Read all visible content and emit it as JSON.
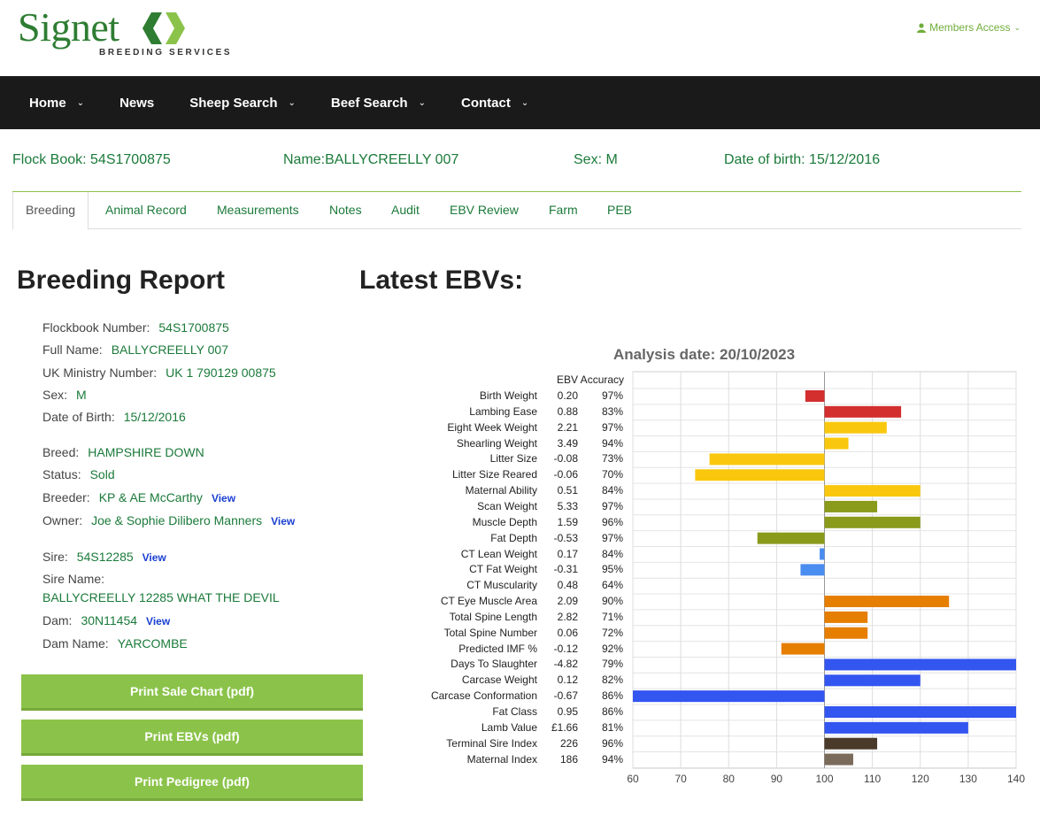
{
  "header": {
    "logo_word": "Signet",
    "logo_sub": "BREEDING SERVICES",
    "members_access": "Members Access",
    "brand_color": "#2e7d32"
  },
  "nav": {
    "items": [
      {
        "label": "Home",
        "has_menu": true
      },
      {
        "label": "News",
        "has_menu": false
      },
      {
        "label": "Sheep Search",
        "has_menu": true
      },
      {
        "label": "Beef Search",
        "has_menu": true
      },
      {
        "label": "Contact",
        "has_menu": true
      }
    ]
  },
  "info": {
    "flock_book": "Flock Book: 54S1700875",
    "name": "Name:BALLYCREELLY 007",
    "sex": "Sex: M",
    "dob": "Date of birth: 15/12/2016"
  },
  "tabs": [
    "Breeding",
    "Animal Record",
    "Measurements",
    "Notes",
    "Audit",
    "EBV Review",
    "Farm",
    "PEB"
  ],
  "report": {
    "title": "Breeding Report",
    "flockbook_label": "Flockbook Number:",
    "flockbook_value": "54S1700875",
    "fullname_label": "Full Name:",
    "fullname_value": "BALLYCREELLY 007",
    "ministry_label": "UK Ministry Number:",
    "ministry_value": "UK 1 790129 00875",
    "sex_label": "Sex:",
    "sex_value": "M",
    "dob_label": "Date of Birth:",
    "dob_value": "15/12/2016",
    "breed_label": "Breed:",
    "breed_value": "HAMPSHIRE DOWN",
    "status_label": "Status:",
    "status_value": "Sold",
    "breeder_label": "Breeder:",
    "breeder_value": "KP & AE McCarthy",
    "owner_label": "Owner:",
    "owner_value": "Joe & Sophie Dilibero Manners",
    "sire_label": "Sire:",
    "sire_value": "54S12285",
    "sire_name_label": "Sire Name:",
    "sire_name_value": "BALLYCREELLY 12285 WHAT THE DEVIL",
    "dam_label": "Dam:",
    "dam_value": "30N11454",
    "dam_name_label": "Dam Name:",
    "dam_name_value": "YARCOMBE",
    "view_label": "View",
    "buttons": [
      "Print Sale Chart (pdf)",
      "Print EBVs (pdf)",
      "Print Pedigree (pdf)"
    ]
  },
  "ebv": {
    "title": "Latest EBVs:",
    "analysis_date": "Analysis date: 20/10/2023",
    "col_header": "EBV Accuracy"
  },
  "chart_data": {
    "type": "bar",
    "orientation": "horizontal",
    "x_ticks": [
      "60",
      "70",
      "80",
      "90",
      "100",
      "110",
      "120",
      "130",
      "140"
    ],
    "xlim": [
      60,
      140
    ],
    "baseline": 100,
    "grid": true,
    "rows": [
      {
        "trait": "Birth Weight",
        "ebv": "0.20",
        "acc": "97%",
        "value": 96,
        "color": "#d32f2f"
      },
      {
        "trait": "Lambing Ease",
        "ebv": "0.88",
        "acc": "83%",
        "value": 116,
        "color": "#d32f2f"
      },
      {
        "trait": "Eight Week Weight",
        "ebv": "2.21",
        "acc": "97%",
        "value": 113,
        "color": "#f9c80e"
      },
      {
        "trait": "Shearling Weight",
        "ebv": "3.49",
        "acc": "94%",
        "value": 105,
        "color": "#f9c80e"
      },
      {
        "trait": "Litter Size",
        "ebv": "-0.08",
        "acc": "73%",
        "value": 76,
        "color": "#f9c80e"
      },
      {
        "trait": "Litter Size Reared",
        "ebv": "-0.06",
        "acc": "70%",
        "value": 73,
        "color": "#f9c80e"
      },
      {
        "trait": "Maternal Ability",
        "ebv": "0.51",
        "acc": "84%",
        "value": 120,
        "color": "#f9c80e"
      },
      {
        "trait": "Scan Weight",
        "ebv": "5.33",
        "acc": "97%",
        "value": 111,
        "color": "#8a9a1b"
      },
      {
        "trait": "Muscle Depth",
        "ebv": "1.59",
        "acc": "96%",
        "value": 120,
        "color": "#8a9a1b"
      },
      {
        "trait": "Fat Depth",
        "ebv": "-0.53",
        "acc": "97%",
        "value": 86,
        "color": "#8a9a1b"
      },
      {
        "trait": "CT Lean Weight",
        "ebv": "0.17",
        "acc": "84%",
        "value": 99,
        "color": "#4a8df0"
      },
      {
        "trait": "CT Fat Weight",
        "ebv": "-0.31",
        "acc": "95%",
        "value": 95,
        "color": "#4a8df0"
      },
      {
        "trait": "CT Muscularity",
        "ebv": "0.48",
        "acc": "64%",
        "value": 100,
        "color": "#4a8df0"
      },
      {
        "trait": "CT Eye Muscle Area",
        "ebv": "2.09",
        "acc": "90%",
        "value": 126,
        "color": "#e67e00"
      },
      {
        "trait": "Total Spine Length",
        "ebv": "2.82",
        "acc": "71%",
        "value": 109,
        "color": "#e67e00"
      },
      {
        "trait": "Total Spine Number",
        "ebv": "0.06",
        "acc": "72%",
        "value": 109,
        "color": "#e67e00"
      },
      {
        "trait": "Predicted IMF %",
        "ebv": "-0.12",
        "acc": "92%",
        "value": 91,
        "color": "#e67e00"
      },
      {
        "trait": "Days To Slaughter",
        "ebv": "-4.82",
        "acc": "79%",
        "value": 140,
        "color": "#3355f0"
      },
      {
        "trait": "Carcase Weight",
        "ebv": "0.12",
        "acc": "82%",
        "value": 120,
        "color": "#3355f0"
      },
      {
        "trait": "Carcase Conformation",
        "ebv": "-0.67",
        "acc": "86%",
        "value": 60,
        "color": "#3355f0"
      },
      {
        "trait": "Fat Class",
        "ebv": "0.95",
        "acc": "86%",
        "value": 140,
        "color": "#3355f0"
      },
      {
        "trait": "Lamb Value",
        "ebv": "£1.66",
        "acc": "81%",
        "value": 130,
        "color": "#3355f0"
      },
      {
        "trait": "Terminal Sire Index",
        "ebv": "226",
        "acc": "96%",
        "value": 111,
        "color": "#4a3a2a"
      },
      {
        "trait": "Maternal Index",
        "ebv": "186",
        "acc": "94%",
        "value": 106,
        "color": "#7a6a5a"
      }
    ]
  }
}
